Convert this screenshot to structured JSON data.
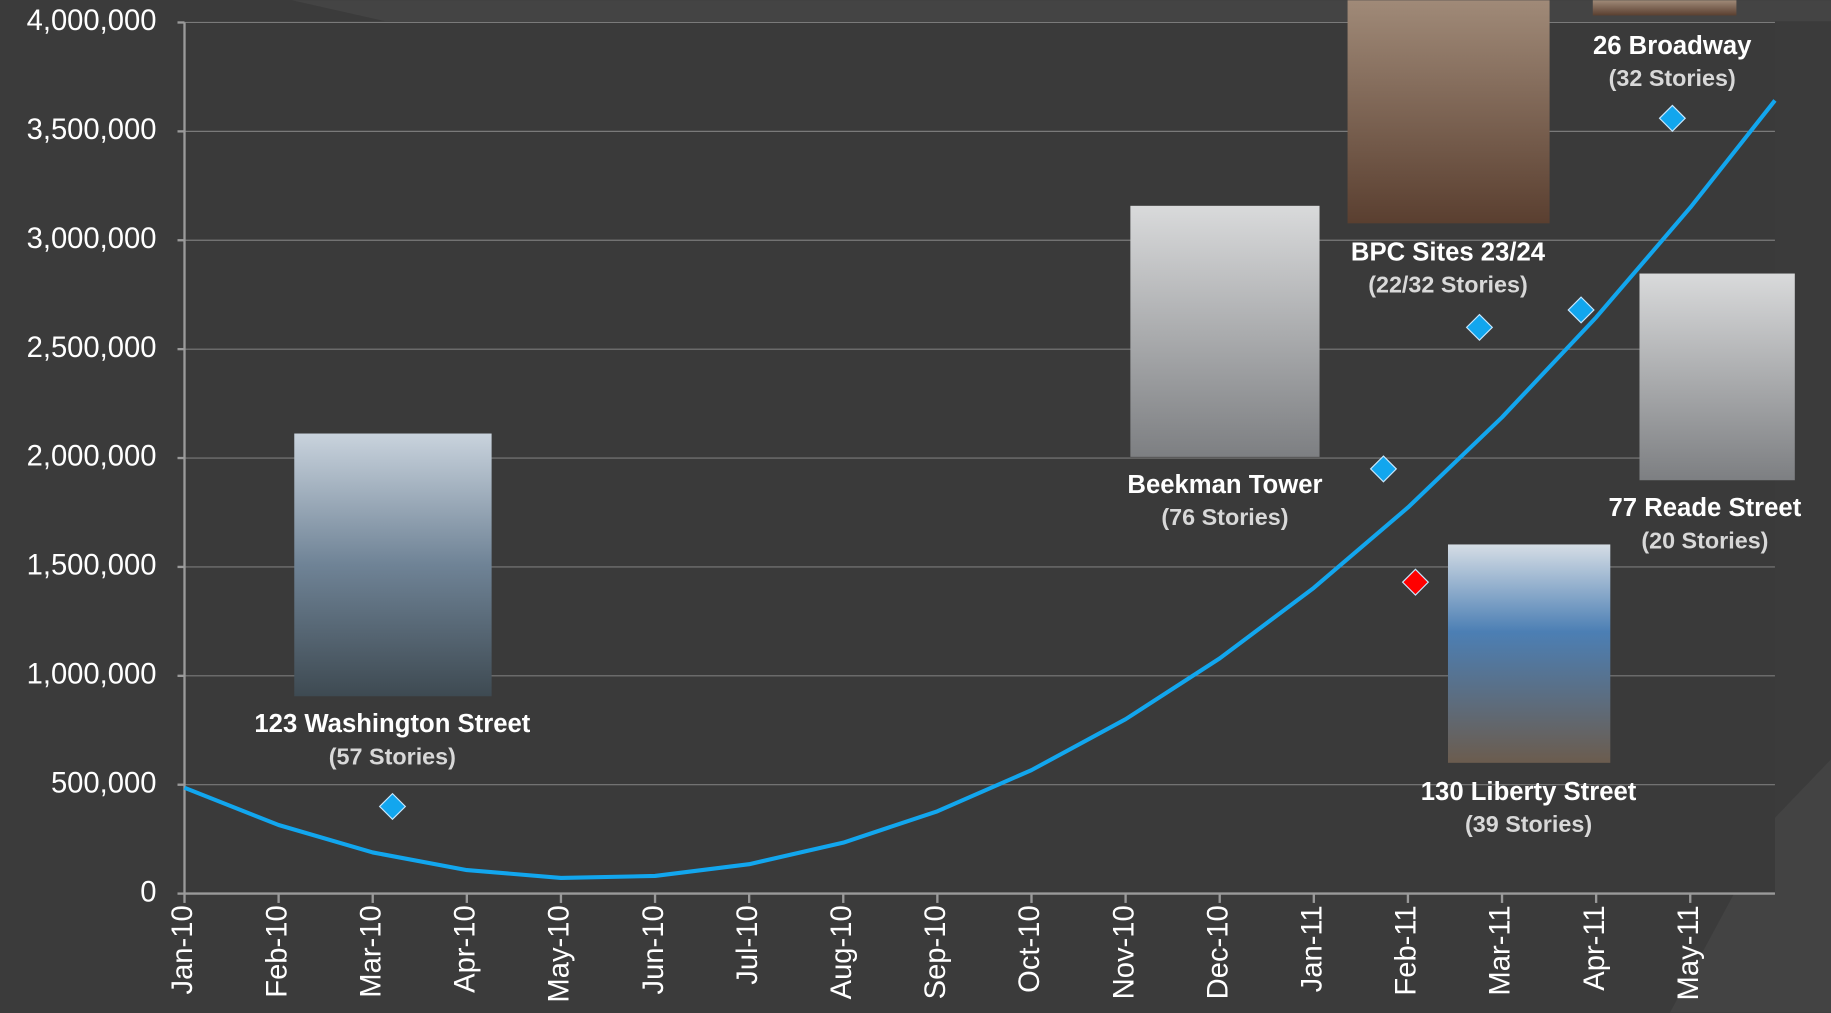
{
  "chart_data": {
    "type": "scatter",
    "xlim": [
      0,
      16.9
    ],
    "xticks": [
      {
        "value": 0,
        "label": "Jan-10"
      },
      {
        "value": 1,
        "label": "Feb-10"
      },
      {
        "value": 2,
        "label": "Mar-10"
      },
      {
        "value": 3,
        "label": "Apr-10"
      },
      {
        "value": 4,
        "label": "May-10"
      },
      {
        "value": 5,
        "label": "Jun-10"
      },
      {
        "value": 6,
        "label": "Jul-10"
      },
      {
        "value": 7,
        "label": "Aug-10"
      },
      {
        "value": 8,
        "label": "Sep-10"
      },
      {
        "value": 9,
        "label": "Oct-10"
      },
      {
        "value": 10,
        "label": "Nov-10"
      },
      {
        "value": 11,
        "label": "Dec-10"
      },
      {
        "value": 12,
        "label": "Jan-11"
      },
      {
        "value": 13,
        "label": "Feb-11"
      },
      {
        "value": 14,
        "label": "Mar-11"
      },
      {
        "value": 15,
        "label": "Apr-11"
      },
      {
        "value": 16,
        "label": "May-11"
      }
    ],
    "ylim": [
      0,
      4000000
    ],
    "yticks": [
      0,
      {
        "value": 500000,
        "label": "500,000"
      },
      {
        "value": 1000000,
        "label": "1,000,000"
      },
      {
        "value": 1500000,
        "label": "1,500,000"
      },
      {
        "value": 2000000,
        "label": "2,000,000"
      },
      {
        "value": 2500000,
        "label": "2,500,000"
      },
      {
        "value": 3000000,
        "label": "3,000,000"
      },
      {
        "value": 3500000,
        "label": "3,500,000"
      },
      {
        "value": 4000000,
        "label": "4,000,000"
      }
    ],
    "grid": true,
    "series": [
      {
        "color": "#12a6ee",
        "x": [
          2.21,
          12.74,
          13.76,
          14.84,
          15.81
        ],
        "values": [
          400000,
          1950000,
          2600000,
          2680000,
          3560000
        ]
      },
      {
        "color": "#ff0000",
        "x": [
          13.08
        ],
        "values": [
          1430000
        ]
      },
      {
        "type": "line",
        "color": "#12a6ee",
        "x": [
          0,
          1,
          2,
          3,
          4,
          5,
          6,
          7,
          8,
          9,
          10,
          11,
          12,
          13,
          14,
          15,
          16,
          16.9
        ],
        "values": [
          486000,
          315000,
          189000,
          108000,
          72000,
          81000,
          135000,
          234000,
          378000,
          567000,
          801000,
          1080000,
          1404000,
          1773000,
          2187000,
          2646000,
          3150000,
          3642000
        ]
      }
    ],
    "annotations": [
      {
        "text": "123 Washington Street",
        "subtext": "(57 Stories)"
      },
      {
        "text": "Beekman Tower",
        "subtext": "(76 Stories)"
      },
      {
        "text": "BPC Sites 23/24",
        "subtext": "(22/32 Stories)"
      },
      {
        "text": "26 Broadway",
        "subtext": "(32 Stories)"
      },
      {
        "text": "77 Reade Street",
        "subtext": "(20 Stories)"
      },
      {
        "text": "130 Liberty Street",
        "subtext": "(39 Stories)"
      }
    ]
  }
}
